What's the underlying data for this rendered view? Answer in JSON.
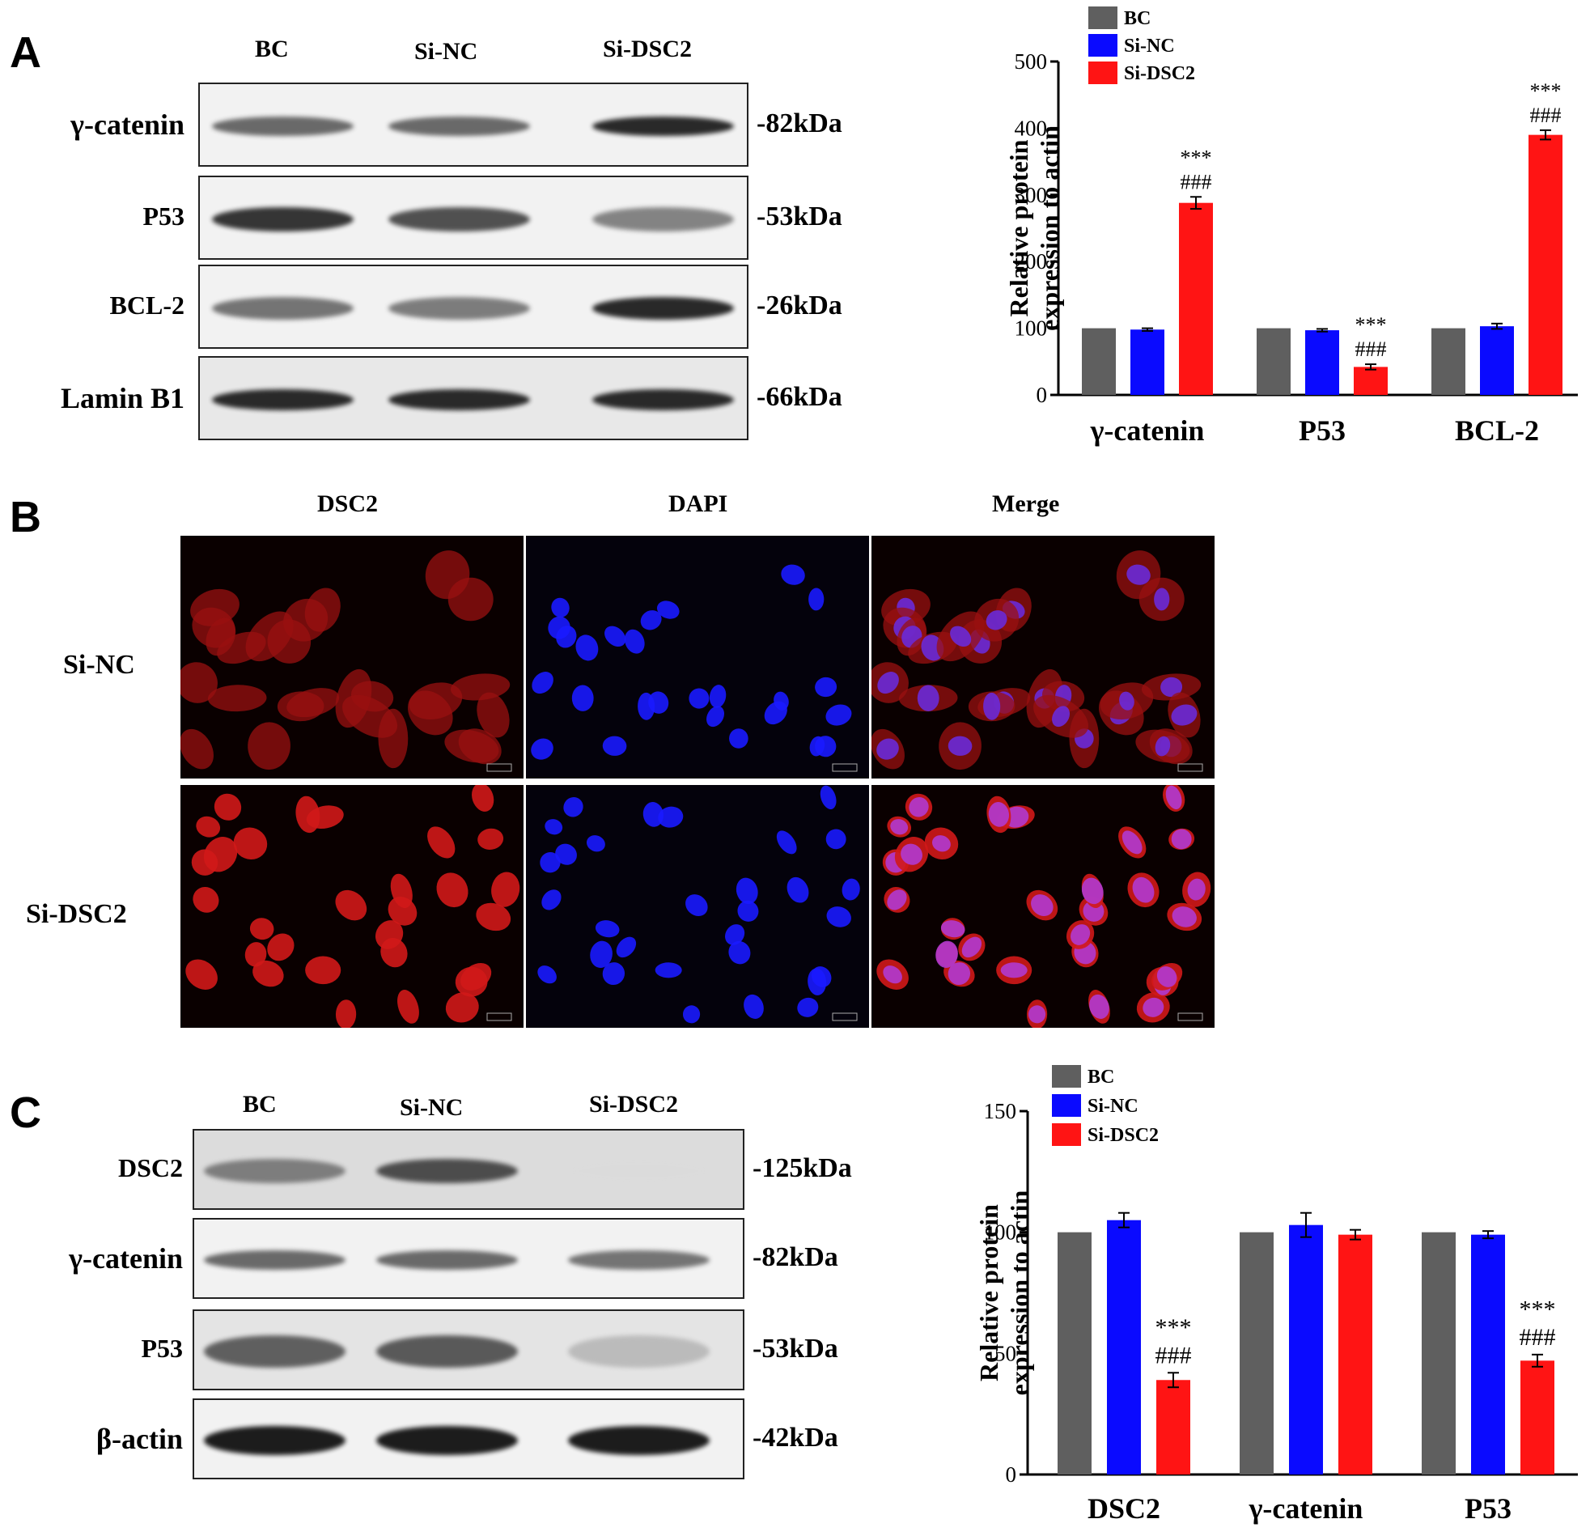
{
  "panel_a": {
    "letter": "A",
    "lanes": [
      "BC",
      "Si-NC",
      "Si-DSC2"
    ],
    "blots": [
      {
        "protein": "γ-catenin",
        "size": "-82kDa",
        "intensity": [
          0.78,
          0.78,
          0.95
        ]
      },
      {
        "protein": "P53",
        "size": "-53kDa",
        "intensity": [
          0.92,
          0.85,
          0.7
        ]
      },
      {
        "protein": "BCL-2",
        "size": "-26kDa",
        "intensity": [
          0.75,
          0.72,
          0.95
        ]
      },
      {
        "protein": "Lamin B1",
        "size": "-66kDa",
        "intensity": [
          0.95,
          0.95,
          0.95
        ]
      }
    ]
  },
  "panel_b": {
    "letter": "B",
    "columns": [
      "DSC2",
      "DAPI",
      "Merge"
    ],
    "rows": [
      "Si-NC",
      "Si-DSC2"
    ]
  },
  "panel_c": {
    "letter": "C",
    "lanes": [
      "BC",
      "Si-NC",
      "Si-DSC2"
    ],
    "blots": [
      {
        "protein": "DSC2",
        "size": "-125kDa",
        "intensity": [
          0.7,
          0.85,
          0.08
        ]
      },
      {
        "protein": "γ-catenin",
        "size": "-82kDa",
        "intensity": [
          0.78,
          0.78,
          0.75
        ]
      },
      {
        "protein": "P53",
        "size": "-53kDa",
        "intensity": [
          0.8,
          0.82,
          0.45
        ]
      },
      {
        "protein": "β-actin",
        "size": "-42kDa",
        "intensity": [
          0.98,
          0.98,
          0.98
        ]
      }
    ]
  },
  "chart_data": [
    {
      "type": "bar",
      "ylabel": "Relative protein expression to actin",
      "categories": [
        "γ-catenin",
        "P53",
        "BCL-2"
      ],
      "ylim": [
        0,
        500
      ],
      "yticks": [
        0,
        100,
        200,
        300,
        400,
        500
      ],
      "legend_position": "top",
      "series": [
        {
          "name": "BC",
          "color": "#5f5f5f",
          "values": [
            100,
            100,
            100
          ],
          "errors": [
            0,
            0,
            0
          ]
        },
        {
          "name": "Si-NC",
          "color": "#0a0aff",
          "values": [
            98,
            97,
            103
          ],
          "errors": [
            2,
            2,
            4
          ]
        },
        {
          "name": "Si-DSC2",
          "color": "#ff1414",
          "values": [
            288,
            42,
            390
          ],
          "errors": [
            9,
            4,
            7
          ]
        }
      ],
      "annotations": [
        {
          "category": "γ-catenin",
          "labels": [
            "***",
            "###"
          ]
        },
        {
          "category": "P53",
          "labels": [
            "***",
            "###"
          ]
        },
        {
          "category": "BCL-2",
          "labels": [
            "***",
            "###"
          ]
        }
      ]
    },
    {
      "type": "bar",
      "ylabel": "Relative protein expression to actin",
      "categories": [
        "DSC2",
        "γ-catenin",
        "P53"
      ],
      "ylim": [
        0,
        150
      ],
      "yticks": [
        0,
        50,
        100,
        150
      ],
      "legend_position": "top",
      "series": [
        {
          "name": "BC",
          "color": "#5f5f5f",
          "values": [
            100,
            100,
            100
          ],
          "errors": [
            0,
            0,
            0
          ]
        },
        {
          "name": "Si-NC",
          "color": "#0a0aff",
          "values": [
            105,
            103,
            99
          ],
          "errors": [
            3,
            5,
            1.5
          ]
        },
        {
          "name": "Si-DSC2",
          "color": "#ff1414",
          "values": [
            39,
            99,
            47
          ],
          "errors": [
            3,
            2,
            2.5
          ]
        }
      ],
      "annotations": [
        {
          "category": "DSC2",
          "labels": [
            "***",
            "###"
          ]
        },
        {
          "category": "P53",
          "labels": [
            "***",
            "###"
          ]
        }
      ]
    }
  ]
}
